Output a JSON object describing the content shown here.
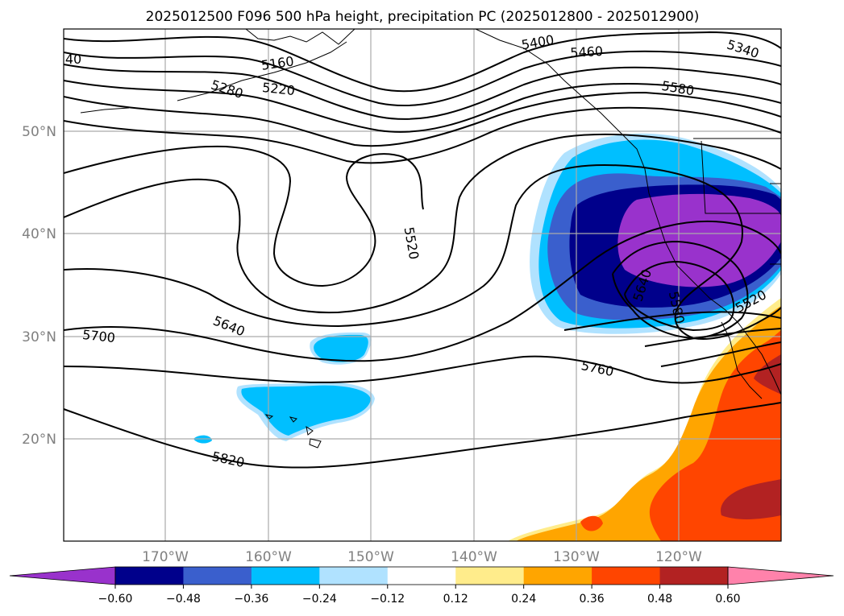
{
  "title": "2025012500 F096 500 hPa height, precipitation PC (2025012800 - 2025012900)",
  "lat_labels": [
    "20°N",
    "30°N",
    "40°N",
    "50°N"
  ],
  "lon_labels": [
    "170°W",
    "160°W",
    "150°W",
    "140°W",
    "130°W",
    "120°W"
  ],
  "contour_labels": [
    "5160",
    "5220",
    "5280",
    "5340",
    "5400",
    "5460",
    "5520",
    "5580",
    "5640",
    "5700",
    "5760",
    "5820",
    "40",
    "5640",
    "5580",
    "5520"
  ],
  "colorbar": {
    "ticks": [
      "−0.60",
      "−0.48",
      "−0.36",
      "−0.24",
      "−0.12",
      "0.12",
      "0.24",
      "0.36",
      "0.48",
      "0.60"
    ],
    "colors": [
      "#9932cc",
      "#00008b",
      "#3a5fcd",
      "#00bfff",
      "#b0e2ff",
      "#ffffff",
      "#ffec8b",
      "#ffa500",
      "#ff4500",
      "#b22222",
      "#ff82ab"
    ]
  }
}
